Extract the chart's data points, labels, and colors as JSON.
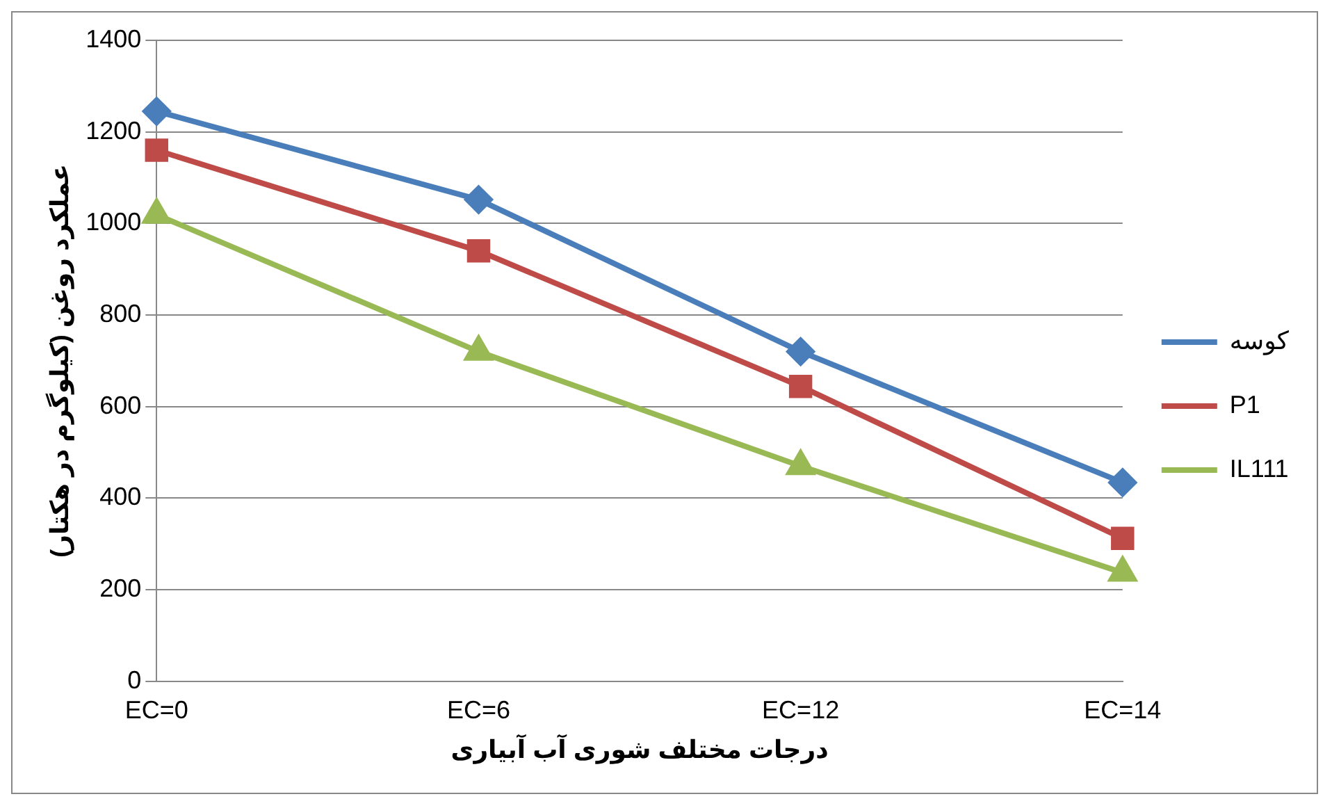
{
  "chart_data": {
    "type": "line",
    "xlabel": "درجات مختلف شوری آب آبیاری",
    "ylabel": "عملکرد روغن (کیلوگرم در هکتار)",
    "categories": [
      "EC=0",
      "EC=6",
      "EC=12",
      "EC=14"
    ],
    "ylim": [
      0,
      1400
    ],
    "yticks": [
      0,
      200,
      400,
      600,
      800,
      1000,
      1200,
      1400
    ],
    "grid": "y",
    "legend": "right",
    "line_style": "solid",
    "series": [
      {
        "name": "کوسه",
        "color": "#4a7ebb",
        "marker": "diamond",
        "values": [
          1245,
          1052,
          720,
          434
        ]
      },
      {
        "name": "P1",
        "color": "#be4b48",
        "marker": "square",
        "values": [
          1160,
          940,
          644,
          312
        ]
      },
      {
        "name": "IL111",
        "color": "#98b954",
        "marker": "triangle",
        "values": [
          1019,
          720,
          470,
          237
        ]
      }
    ]
  }
}
